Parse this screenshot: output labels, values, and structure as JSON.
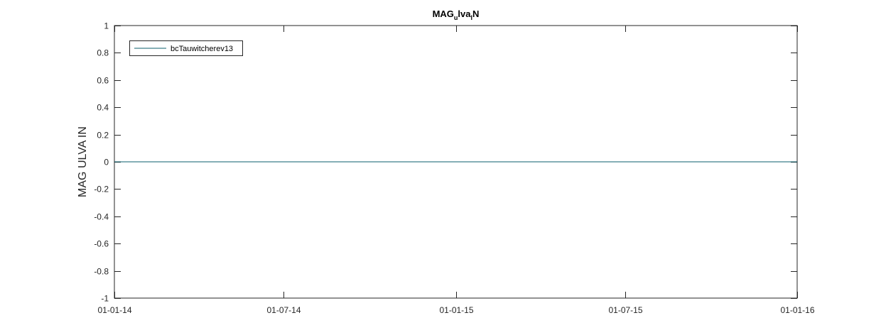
{
  "chart_data": {
    "type": "line",
    "title": {
      "parts": [
        {
          "text": "MAG",
          "sub": false
        },
        {
          "text": "u",
          "sub": true
        },
        {
          "text": "lva",
          "sub": false
        },
        {
          "text": "l",
          "sub": true
        },
        {
          "text": "N",
          "sub": false
        }
      ]
    },
    "xlabel": "",
    "ylabel": "MAG ULVA IN",
    "xlim": [
      "2014-01-01",
      "2016-01-01"
    ],
    "ylim": [
      -1,
      1
    ],
    "x_ticks": [
      {
        "date": "2014-01-01",
        "label": "01-01-14"
      },
      {
        "date": "2014-07-01",
        "label": "01-07-14"
      },
      {
        "date": "2015-01-01",
        "label": "01-01-15"
      },
      {
        "date": "2015-07-01",
        "label": "01-07-15"
      },
      {
        "date": "2016-01-01",
        "label": "01-01-16"
      }
    ],
    "y_ticks": [
      1,
      0.8,
      0.6,
      0.4,
      0.2,
      0,
      -0.2,
      -0.4,
      -0.6,
      -0.8,
      -1
    ],
    "y_tick_labels": [
      "1",
      "0.8",
      "0.6",
      "0.4",
      "0.2",
      "0",
      "-0.2",
      "-0.4",
      "-0.6",
      "-0.8",
      "-1"
    ],
    "grid": false,
    "legend_position": "top-left",
    "series": [
      {
        "name": "bcTauwitcherev13",
        "color": "#0b5f6e",
        "x": [
          "2014-01-01",
          "2016-01-01"
        ],
        "y": [
          0,
          0
        ]
      }
    ]
  }
}
